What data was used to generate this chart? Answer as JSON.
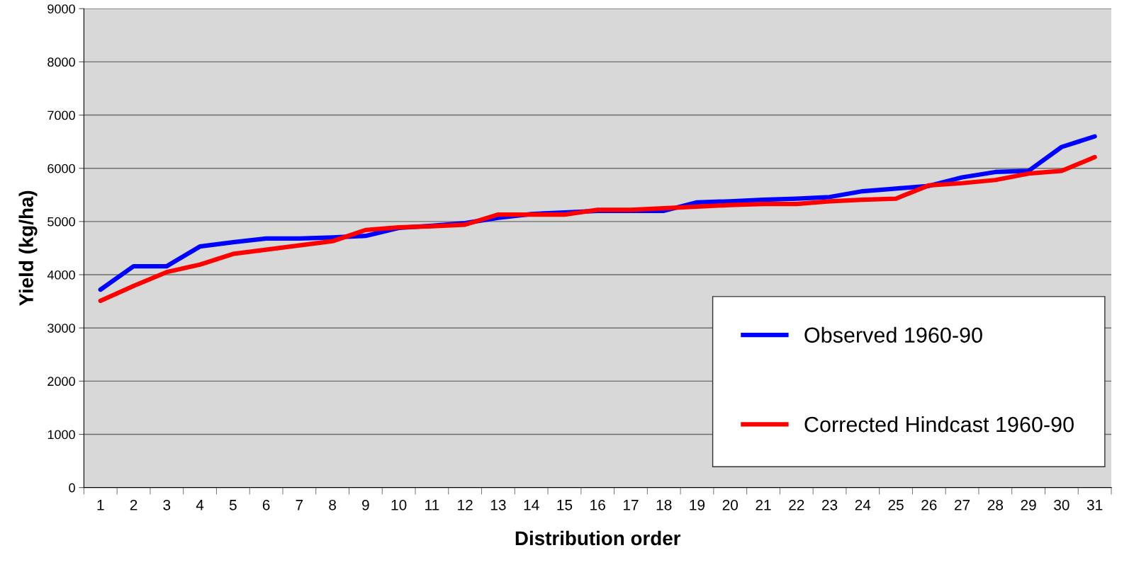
{
  "chart_data": {
    "type": "line",
    "xlabel": "Distribution order",
    "ylabel": "Yield (kg/ha)",
    "categories": [
      "1",
      "2",
      "3",
      "4",
      "5",
      "6",
      "7",
      "8",
      "9",
      "10",
      "11",
      "12",
      "13",
      "14",
      "15",
      "16",
      "17",
      "18",
      "19",
      "20",
      "21",
      "22",
      "23",
      "24",
      "25",
      "26",
      "27",
      "28",
      "29",
      "30",
      "31"
    ],
    "series": [
      {
        "name": "Observed 1960-90",
        "color": "#0000ff",
        "values": [
          3720,
          4160,
          4160,
          4530,
          4610,
          4680,
          4680,
          4700,
          4730,
          4880,
          4920,
          4970,
          5070,
          5140,
          5170,
          5200,
          5200,
          5200,
          5360,
          5380,
          5410,
          5430,
          5460,
          5570,
          5620,
          5670,
          5830,
          5930,
          5950,
          6400,
          6600
        ]
      },
      {
        "name": "Corrected Hindcast 1960-90",
        "color": "#ff0000",
        "values": [
          3510,
          3790,
          4050,
          4190,
          4390,
          4470,
          4550,
          4630,
          4840,
          4890,
          4910,
          4940,
          5130,
          5130,
          5130,
          5220,
          5220,
          5250,
          5280,
          5310,
          5330,
          5330,
          5380,
          5410,
          5430,
          5680,
          5720,
          5780,
          5900,
          5950,
          6210
        ]
      }
    ],
    "ylim": [
      0,
      9000
    ],
    "yticks": [
      0,
      1000,
      2000,
      3000,
      4000,
      5000,
      6000,
      7000,
      8000,
      9000
    ],
    "grid": "y",
    "legend": "bottom right",
    "marker": "none",
    "line_style": "solid"
  }
}
